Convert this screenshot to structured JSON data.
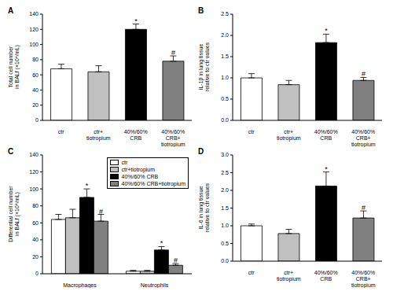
{
  "chart_data": [
    {
      "type": "bar",
      "title": "A",
      "ylabel": "Total cell number in BALf (×10⁴/mL)",
      "categories": [
        "ctr",
        "ctr+ tiotropium",
        "40%/60% CRB",
        "40%/60% CRB+ tiotropium"
      ],
      "values": [
        68,
        64,
        120,
        78
      ],
      "errors": [
        6,
        8,
        7,
        7
      ],
      "annotations": [
        null,
        null,
        "*",
        "#"
      ],
      "colors": [
        "#ffffff",
        "#c0c0c0",
        "#000000",
        "#808080"
      ],
      "ylim": [
        0,
        140
      ],
      "yticks": [
        0,
        20,
        40,
        60,
        80,
        100,
        120,
        140
      ]
    },
    {
      "type": "bar",
      "title": "B",
      "ylabel": "IL-1β in lung tissue relative to ctr values",
      "categories": [
        "ctr",
        "ctr+ tiotropium",
        "40%/60% CRB",
        "40%/60% CRB+ tiotropium"
      ],
      "values": [
        1.0,
        0.84,
        1.83,
        0.94
      ],
      "errors": [
        0.1,
        0.1,
        0.2,
        0.07
      ],
      "annotations": [
        null,
        null,
        "*",
        "#"
      ],
      "colors": [
        "#ffffff",
        "#c0c0c0",
        "#000000",
        "#808080"
      ],
      "ylim": [
        0,
        2.5
      ],
      "yticks": [
        {
          "value": 0,
          "label": "0.0"
        },
        0.5,
        {
          "value": 1,
          "label": "1.0"
        },
        1.5,
        {
          "value": 2,
          "label": "2.0"
        },
        2.5
      ]
    },
    {
      "type": "bar",
      "title": "C",
      "ylabel": "Differential cell number in BALf (×10⁴/mL)",
      "categories": [
        "Macrophages",
        "Neutrophils"
      ],
      "series": [
        {
          "name": "ctr",
          "color": "#ffffff",
          "values": [
            64,
            3
          ],
          "errors": [
            6,
            1
          ]
        },
        {
          "name": "ctr+tiotropium",
          "color": "#c0c0c0",
          "values": [
            66,
            3
          ],
          "errors": [
            10,
            1
          ]
        },
        {
          "name": "40%/60% CRB",
          "color": "#000000",
          "values": [
            90,
            28
          ],
          "errors": [
            10,
            4
          ],
          "annotations": [
            "*",
            "*"
          ]
        },
        {
          "name": "40%/60% CRB+tiotropium",
          "color": "#808080",
          "values": [
            62,
            10
          ],
          "errors": [
            8,
            2
          ],
          "annotations": [
            "#",
            "#"
          ]
        }
      ],
      "legend": "upper right",
      "ylim": [
        0,
        140
      ],
      "yticks": [
        0,
        20,
        40,
        60,
        80,
        100,
        120,
        140
      ]
    },
    {
      "type": "bar",
      "title": "D",
      "ylabel": "IL-6 in lung tissue relative to ctr values",
      "categories": [
        "ctr",
        "ctr+ tiotropium",
        "40%/60% CRB",
        "40%/60% CRB+ tiotropium"
      ],
      "values": [
        1.0,
        0.78,
        2.12,
        1.22
      ],
      "errors": [
        0.05,
        0.12,
        0.4,
        0.2
      ],
      "annotations": [
        null,
        null,
        "*",
        "#"
      ],
      "colors": [
        "#ffffff",
        "#c0c0c0",
        "#000000",
        "#808080"
      ],
      "ylim": [
        0,
        3.0
      ],
      "yticks": [
        {
          "value": 0,
          "label": "0.0"
        },
        0.5,
        {
          "value": 1,
          "label": "1.0"
        },
        1.5,
        {
          "value": 2,
          "label": "2.0"
        },
        2.5,
        {
          "value": 3,
          "label": "3.0"
        }
      ]
    }
  ]
}
